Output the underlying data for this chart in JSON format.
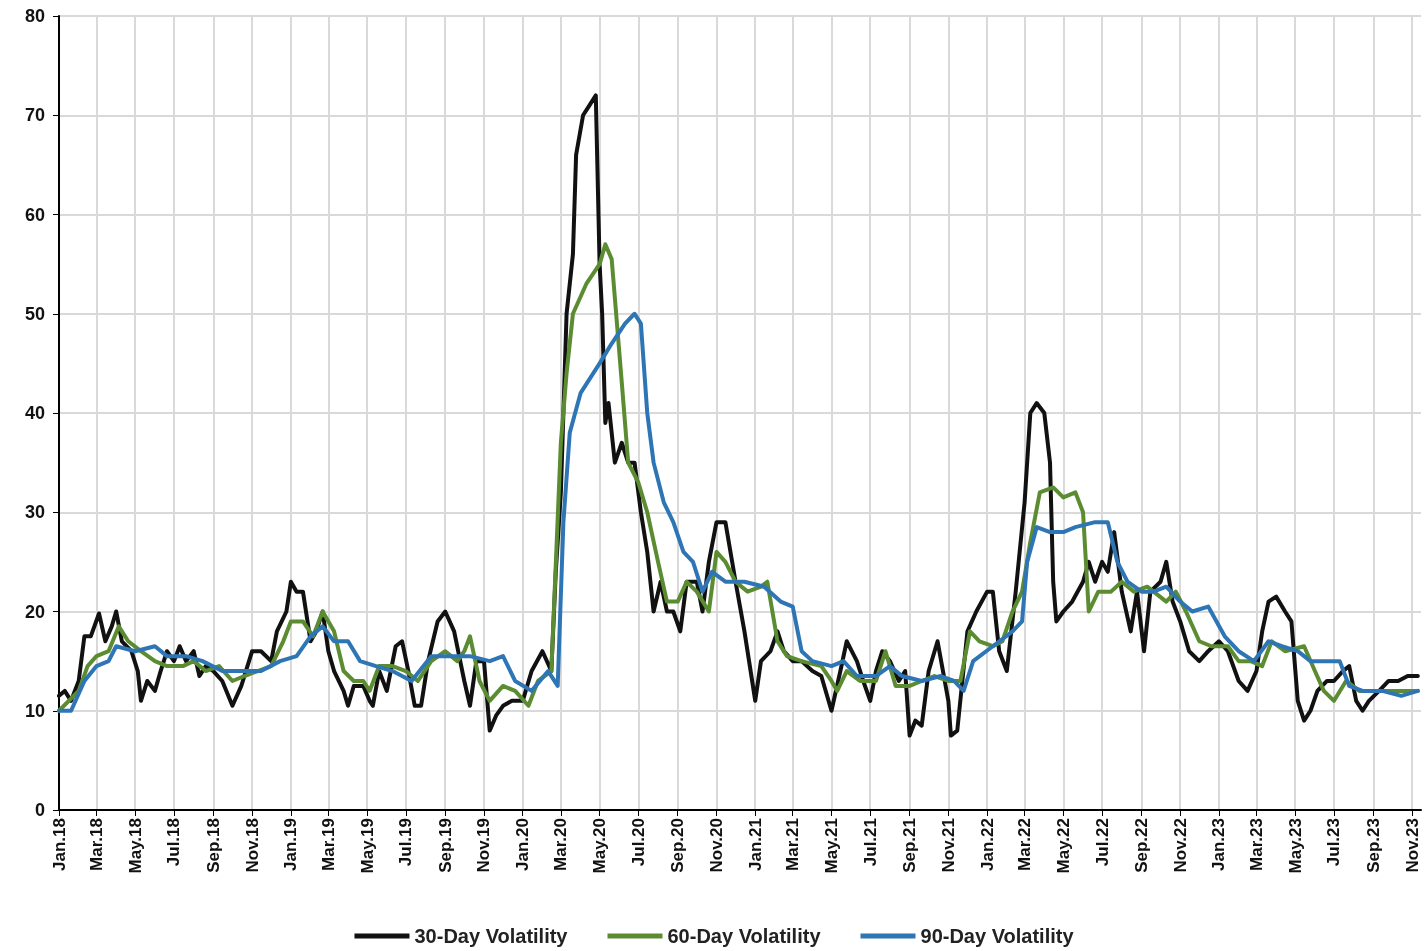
{
  "chart_data": {
    "type": "line",
    "legend": "bottom",
    "grid": true,
    "marker": "none",
    "line_style": "solid",
    "xlim": [
      "2018-01-01",
      "2023-11-15"
    ],
    "ylim": [
      0,
      80
    ],
    "yticks": [
      0,
      10,
      20,
      30,
      40,
      50,
      60,
      70,
      80
    ],
    "xticks": [
      {
        "value": "2018-01-01",
        "label": "Jan.18"
      },
      {
        "value": "2018-03-01",
        "label": "Mar.18"
      },
      {
        "value": "2018-05-01",
        "label": "May.18"
      },
      {
        "value": "2018-07-01",
        "label": "Jul.18"
      },
      {
        "value": "2018-09-01",
        "label": "Sep.18"
      },
      {
        "value": "2018-11-01",
        "label": "Nov.18"
      },
      {
        "value": "2019-01-01",
        "label": "Jan.19"
      },
      {
        "value": "2019-03-01",
        "label": "Mar.19"
      },
      {
        "value": "2019-05-01",
        "label": "May.19"
      },
      {
        "value": "2019-07-01",
        "label": "Jul.19"
      },
      {
        "value": "2019-09-01",
        "label": "Sep.19"
      },
      {
        "value": "2019-11-01",
        "label": "Nov.19"
      },
      {
        "value": "2020-01-01",
        "label": "Jan.20"
      },
      {
        "value": "2020-03-01",
        "label": "Mar.20"
      },
      {
        "value": "2020-05-01",
        "label": "May.20"
      },
      {
        "value": "2020-07-01",
        "label": "Jul.20"
      },
      {
        "value": "2020-09-01",
        "label": "Sep.20"
      },
      {
        "value": "2020-11-01",
        "label": "Nov.20"
      },
      {
        "value": "2021-01-01",
        "label": "Jan.21"
      },
      {
        "value": "2021-03-01",
        "label": "Mar.21"
      },
      {
        "value": "2021-05-01",
        "label": "May.21"
      },
      {
        "value": "2021-07-01",
        "label": "Jul.21"
      },
      {
        "value": "2021-09-01",
        "label": "Sep.21"
      },
      {
        "value": "2021-11-01",
        "label": "Nov.21"
      },
      {
        "value": "2022-01-01",
        "label": "Jan.22"
      },
      {
        "value": "2022-03-01",
        "label": "Mar.22"
      },
      {
        "value": "2022-05-01",
        "label": "May.22"
      },
      {
        "value": "2022-07-01",
        "label": "Jul.22"
      },
      {
        "value": "2022-09-01",
        "label": "Sep.22"
      },
      {
        "value": "2022-11-01",
        "label": "Nov.22"
      },
      {
        "value": "2023-01-01",
        "label": "Jan.23"
      },
      {
        "value": "2023-03-01",
        "label": "Mar.23"
      },
      {
        "value": "2023-05-01",
        "label": "May.23"
      },
      {
        "value": "2023-07-01",
        "label": "Jul.23"
      },
      {
        "value": "2023-09-01",
        "label": "Sep.23"
      },
      {
        "value": "2023-11-01",
        "label": "Nov.23"
      }
    ],
    "series": [
      {
        "name": "30-Day Volatility",
        "color": "#111111",
        "x": [
          "2018-01-01",
          "2018-01-10",
          "2018-01-20",
          "2018-02-01",
          "2018-02-10",
          "2018-02-20",
          "2018-03-05",
          "2018-03-15",
          "2018-03-25",
          "2018-04-01",
          "2018-04-10",
          "2018-04-25",
          "2018-05-05",
          "2018-05-10",
          "2018-05-20",
          "2018-06-01",
          "2018-06-10",
          "2018-06-20",
          "2018-07-01",
          "2018-07-10",
          "2018-07-20",
          "2018-08-01",
          "2018-08-10",
          "2018-08-20",
          "2018-09-01",
          "2018-09-15",
          "2018-10-01",
          "2018-10-15",
          "2018-11-01",
          "2018-11-15",
          "2018-12-01",
          "2018-12-10",
          "2018-12-25",
          "2019-01-01",
          "2019-01-10",
          "2019-01-20",
          "2019-02-01",
          "2019-02-10",
          "2019-02-20",
          "2019-03-01",
          "2019-03-10",
          "2019-03-25",
          "2019-04-01",
          "2019-04-10",
          "2019-04-25",
          "2019-05-05",
          "2019-05-10",
          "2019-05-20",
          "2019-06-01",
          "2019-06-15",
          "2019-06-25",
          "2019-07-05",
          "2019-07-15",
          "2019-07-25",
          "2019-08-05",
          "2019-08-20",
          "2019-09-01",
          "2019-09-15",
          "2019-10-01",
          "2019-10-10",
          "2019-10-20",
          "2019-11-01",
          "2019-11-10",
          "2019-11-20",
          "2019-12-01",
          "2019-12-15",
          "2020-01-01",
          "2020-01-15",
          "2020-02-01",
          "2020-02-15",
          "2020-02-22",
          "2020-03-01",
          "2020-03-10",
          "2020-03-20",
          "2020-03-25",
          "2020-04-05",
          "2020-04-15",
          "2020-04-25",
          "2020-05-01",
          "2020-05-05",
          "2020-05-10",
          "2020-05-15",
          "2020-05-25",
          "2020-06-05",
          "2020-06-15",
          "2020-06-25",
          "2020-07-05",
          "2020-07-15",
          "2020-07-25",
          "2020-08-05",
          "2020-08-15",
          "2020-08-25",
          "2020-09-05",
          "2020-09-15",
          "2020-10-01",
          "2020-10-10",
          "2020-10-20",
          "2020-11-01",
          "2020-11-15",
          "2020-12-01",
          "2020-12-15",
          "2021-01-01",
          "2021-01-10",
          "2021-01-25",
          "2021-02-05",
          "2021-02-15",
          "2021-03-01",
          "2021-03-15",
          "2021-04-01",
          "2021-04-15",
          "2021-05-01",
          "2021-05-15",
          "2021-05-25",
          "2021-06-10",
          "2021-06-20",
          "2021-07-01",
          "2021-07-10",
          "2021-07-20",
          "2021-08-01",
          "2021-08-15",
          "2021-08-25",
          "2021-09-01",
          "2021-09-10",
          "2021-09-20",
          "2021-10-01",
          "2021-10-15",
          "2021-11-01",
          "2021-11-05",
          "2021-11-15",
          "2021-12-01",
          "2021-12-15",
          "2022-01-01",
          "2022-01-10",
          "2022-01-20",
          "2022-02-01",
          "2022-02-15",
          "2022-03-01",
          "2022-03-10",
          "2022-03-20",
          "2022-04-01",
          "2022-04-10",
          "2022-04-15",
          "2022-04-20",
          "2022-05-01",
          "2022-05-15",
          "2022-06-01",
          "2022-06-10",
          "2022-06-20",
          "2022-07-01",
          "2022-07-10",
          "2022-07-20",
          "2022-08-01",
          "2022-08-15",
          "2022-08-25",
          "2022-09-05",
          "2022-09-15",
          "2022-10-01",
          "2022-10-10",
          "2022-10-20",
          "2022-11-01",
          "2022-11-15",
          "2022-12-01",
          "2022-12-15",
          "2023-01-01",
          "2023-01-15",
          "2023-02-01",
          "2023-02-15",
          "2023-03-01",
          "2023-03-10",
          "2023-03-20",
          "2023-04-01",
          "2023-04-15",
          "2023-04-25",
          "2023-05-05",
          "2023-05-15",
          "2023-05-25",
          "2023-06-05",
          "2023-06-20",
          "2023-07-01",
          "2023-07-15",
          "2023-07-25",
          "2023-08-05",
          "2023-08-15",
          "2023-08-25",
          "2023-09-10",
          "2023-09-25",
          "2023-10-10",
          "2023-10-25",
          "2023-11-10"
        ],
        "values": [
          11.5,
          12,
          11,
          13,
          17.5,
          17.5,
          19.8,
          17,
          18.5,
          20,
          17,
          16,
          14,
          11,
          13,
          12,
          14,
          16,
          15,
          16.5,
          15,
          16,
          13.5,
          14.5,
          14,
          13,
          10.5,
          12.5,
          16,
          16,
          15,
          18,
          20,
          23,
          22,
          22,
          17,
          18,
          20,
          16,
          14,
          12,
          10.5,
          12.5,
          12.5,
          11,
          10.5,
          14,
          12,
          16.5,
          17,
          14,
          10.5,
          10.5,
          15,
          19,
          20,
          18,
          13,
          10.5,
          15,
          15,
          8,
          9.5,
          10.5,
          11,
          11,
          14,
          16,
          14,
          24,
          32,
          50,
          56,
          66,
          70,
          71,
          72,
          55,
          50,
          39,
          41,
          35,
          37,
          35,
          35,
          30,
          26,
          20,
          23,
          20,
          20,
          18,
          23,
          23,
          20,
          25,
          29,
          29,
          23,
          18,
          11,
          15,
          16,
          18,
          16,
          15,
          15,
          14,
          13.5,
          10,
          14,
          17,
          15,
          13,
          11,
          14,
          16,
          15,
          13,
          14,
          7.5,
          9,
          8.5,
          14,
          17,
          11,
          7.5,
          8,
          18,
          20,
          22,
          22,
          16,
          14,
          22,
          31,
          40,
          41,
          40,
          35,
          23,
          19,
          20,
          21,
          23,
          25,
          23,
          25,
          24,
          28,
          22,
          18,
          22,
          16,
          22,
          23,
          25,
          21,
          19,
          16,
          15,
          16,
          17,
          16,
          13,
          12,
          14,
          18,
          21,
          21.5,
          20,
          19,
          11,
          9,
          10,
          12,
          13,
          13,
          14,
          14.5,
          11,
          10,
          11,
          12,
          13,
          13,
          13.5,
          13.5
        ]
      },
      {
        "name": "60-Day Volatility",
        "color": "#5b8c32",
        "x": [
          "2018-01-01",
          "2018-02-01",
          "2018-02-15",
          "2018-03-01",
          "2018-03-20",
          "2018-04-05",
          "2018-04-20",
          "2018-05-10",
          "2018-06-01",
          "2018-06-20",
          "2018-07-15",
          "2018-08-01",
          "2018-08-20",
          "2018-09-10",
          "2018-10-01",
          "2018-10-20",
          "2018-11-10",
          "2018-12-01",
          "2018-12-20",
          "2019-01-01",
          "2019-01-20",
          "2019-02-05",
          "2019-02-20",
          "2019-03-10",
          "2019-03-25",
          "2019-04-10",
          "2019-04-25",
          "2019-05-05",
          "2019-05-20",
          "2019-06-10",
          "2019-07-01",
          "2019-07-20",
          "2019-08-10",
          "2019-09-01",
          "2019-09-20",
          "2019-10-01",
          "2019-10-10",
          "2019-10-25",
          "2019-11-10",
          "2019-12-01",
          "2019-12-20",
          "2020-01-10",
          "2020-01-25",
          "2020-02-15",
          "2020-03-01",
          "2020-03-10",
          "2020-03-20",
          "2020-04-10",
          "2020-05-01",
          "2020-05-10",
          "2020-05-20",
          "2020-06-05",
          "2020-06-15",
          "2020-07-01",
          "2020-07-15",
          "2020-08-01",
          "2020-08-15",
          "2020-09-01",
          "2020-09-15",
          "2020-10-01",
          "2020-10-20",
          "2020-11-01",
          "2020-11-15",
          "2020-12-01",
          "2020-12-20",
          "2021-01-10",
          "2021-01-20",
          "2021-02-05",
          "2021-02-20",
          "2021-03-15",
          "2021-04-15",
          "2021-05-01",
          "2021-05-10",
          "2021-05-25",
          "2021-06-15",
          "2021-07-10",
          "2021-07-25",
          "2021-08-10",
          "2021-09-01",
          "2021-09-20",
          "2021-10-10",
          "2021-11-01",
          "2021-11-20",
          "2021-12-05",
          "2021-12-20",
          "2022-01-10",
          "2022-01-25",
          "2022-02-10",
          "2022-02-25",
          "2022-03-10",
          "2022-03-25",
          "2022-04-15",
          "2022-05-01",
          "2022-05-20",
          "2022-06-01",
          "2022-06-10",
          "2022-06-25",
          "2022-07-15",
          "2022-08-01",
          "2022-08-20",
          "2022-09-10",
          "2022-10-10",
          "2022-10-25",
          "2022-11-10",
          "2022-12-01",
          "2022-12-20",
          "2023-01-15",
          "2023-02-01",
          "2023-02-20",
          "2023-03-10",
          "2023-03-25",
          "2023-04-15",
          "2023-05-15",
          "2023-06-01",
          "2023-06-15",
          "2023-07-01",
          "2023-07-20",
          "2023-08-10",
          "2023-09-01",
          "2023-09-20",
          "2023-10-10",
          "2023-11-10"
        ],
        "values": [
          10,
          12,
          14.5,
          15.5,
          16,
          18.5,
          17,
          16,
          15,
          14.5,
          14.5,
          15,
          14,
          14.5,
          13,
          13.5,
          14,
          14.5,
          17,
          19,
          19,
          17.5,
          20,
          18,
          14,
          13,
          13,
          12,
          14.5,
          14.5,
          14,
          13,
          15,
          16,
          15,
          16,
          17.5,
          13,
          11,
          12.5,
          12,
          10.5,
          13,
          14,
          37,
          44,
          50,
          53,
          55,
          57,
          55.5,
          43,
          35,
          33,
          30,
          25,
          21,
          21,
          23,
          22,
          20,
          26,
          25,
          23,
          22,
          22.5,
          23,
          17,
          15.5,
          15,
          14.5,
          13,
          12,
          14,
          13,
          13,
          16,
          12.5,
          12.5,
          13,
          13.5,
          13,
          13,
          18,
          17,
          16.5,
          17,
          20,
          22,
          27,
          32,
          32.5,
          31.5,
          32,
          30,
          20,
          22,
          22,
          23,
          22,
          22.5,
          21,
          22,
          20,
          17,
          16.5,
          16.5,
          15,
          15,
          14.5,
          17,
          16,
          16.5,
          14,
          12,
          11,
          13,
          12,
          12,
          12,
          12,
          12
        ]
      },
      {
        "name": "90-Day Volatility",
        "color": "#2e75b6",
        "x": [
          "2018-01-01",
          "2018-01-20",
          "2018-02-10",
          "2018-03-01",
          "2018-03-20",
          "2018-04-01",
          "2018-05-01",
          "2018-06-01",
          "2018-06-20",
          "2018-07-20",
          "2018-08-15",
          "2018-09-15",
          "2018-10-15",
          "2018-11-15",
          "2018-12-15",
          "2019-01-10",
          "2019-02-01",
          "2019-02-20",
          "2019-03-10",
          "2019-04-01",
          "2019-04-20",
          "2019-05-15",
          "2019-06-10",
          "2019-07-10",
          "2019-08-10",
          "2019-09-10",
          "2019-10-10",
          "2019-11-10",
          "2019-12-01",
          "2019-12-20",
          "2020-01-15",
          "2020-02-10",
          "2020-02-25",
          "2020-03-05",
          "2020-03-15",
          "2020-04-01",
          "2020-05-01",
          "2020-05-20",
          "2020-06-10",
          "2020-06-25",
          "2020-07-05",
          "2020-07-15",
          "2020-07-25",
          "2020-08-10",
          "2020-08-25",
          "2020-09-10",
          "2020-09-25",
          "2020-10-10",
          "2020-10-25",
          "2020-11-15",
          "2020-12-15",
          "2021-01-15",
          "2021-02-10",
          "2021-03-01",
          "2021-03-15",
          "2021-04-01",
          "2021-05-01",
          "2021-05-20",
          "2021-06-10",
          "2021-07-10",
          "2021-08-01",
          "2021-08-20",
          "2021-09-20",
          "2021-10-20",
          "2021-11-10",
          "2021-11-25",
          "2021-12-10",
          "2022-01-10",
          "2022-02-10",
          "2022-02-25",
          "2022-03-05",
          "2022-03-20",
          "2022-04-10",
          "2022-05-01",
          "2022-05-20",
          "2022-06-20",
          "2022-07-10",
          "2022-07-25",
          "2022-08-10",
          "2022-09-01",
          "2022-09-20",
          "2022-10-10",
          "2022-11-01",
          "2022-11-20",
          "2022-12-15",
          "2023-01-10",
          "2023-02-01",
          "2023-02-25",
          "2023-03-20",
          "2023-04-10",
          "2023-05-05",
          "2023-05-25",
          "2023-06-20",
          "2023-07-10",
          "2023-07-25",
          "2023-08-15",
          "2023-09-15",
          "2023-10-15",
          "2023-11-10"
        ],
        "values": [
          10,
          10,
          13,
          14.5,
          15,
          16.5,
          16,
          16.5,
          15.5,
          15.5,
          15,
          14,
          14,
          14,
          15,
          15.5,
          17.5,
          18.5,
          17,
          17,
          15,
          14.5,
          14,
          13,
          15.5,
          15.5,
          15.5,
          15,
          15.5,
          13,
          12,
          14,
          12.5,
          29,
          38,
          42,
          45,
          47,
          49,
          50,
          49,
          40,
          35,
          31,
          29,
          26,
          25,
          22,
          24,
          23,
          23,
          22.5,
          21,
          20.5,
          16,
          15,
          14.5,
          15,
          13.5,
          13.5,
          14.5,
          13.5,
          13,
          13.5,
          13,
          12,
          15,
          16.5,
          18,
          19,
          25,
          28.5,
          28,
          28,
          28.5,
          29,
          29,
          25,
          23,
          22,
          22,
          22.5,
          21,
          20,
          20.5,
          17.5,
          16,
          15,
          17,
          16.5,
          16,
          15,
          15,
          15,
          12.5,
          12,
          12,
          11.5,
          12
        ]
      }
    ]
  }
}
